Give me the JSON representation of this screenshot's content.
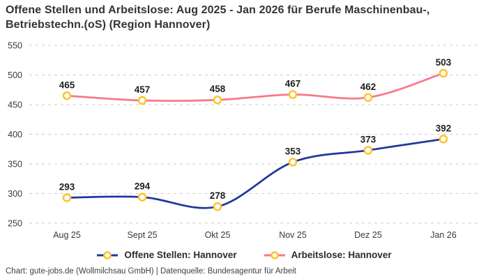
{
  "title": "Offene Stellen und Arbeitslose: Aug 2025 - Jan 2026 für Berufe Maschinenbau-, Betriebstechn.(oS) (Region Hannover)",
  "footer": "Chart: gute-jobs.de (Wollmilchsau GmbH) | Datenquelle: Bundesagentur für Arbeit",
  "colors": {
    "offene_stellen": "#20389b",
    "arbeitslose": "#f9778a",
    "marker_ring": "#fcc32c",
    "marker_fill": "#ffffff",
    "grid": "#cccccc",
    "tick_text": "#3a3a3a",
    "data_label": "#1f1f1f"
  },
  "chart_data": {
    "type": "line",
    "categories": [
      "Aug 25",
      "Sept 25",
      "Okt 25",
      "Nov 25",
      "Dez 25",
      "Jan 26"
    ],
    "series": [
      {
        "name": "Offene Stellen: Hannover",
        "values": [
          293,
          294,
          278,
          353,
          373,
          392
        ],
        "color_key": "offene_stellen"
      },
      {
        "name": "Arbeitslose: Hannover",
        "values": [
          465,
          457,
          458,
          467,
          462,
          503
        ],
        "color_key": "arbeitslose"
      }
    ],
    "ylim": [
      250,
      550
    ],
    "ytick_step": 50,
    "grid": "horizontal-dashed",
    "legend_position": "bottom",
    "title": "Offene Stellen und Arbeitslose: Aug 2025 - Jan 2026 für Berufe Maschinenbau-, Betriebstechn.(oS) (Region Hannover)"
  }
}
